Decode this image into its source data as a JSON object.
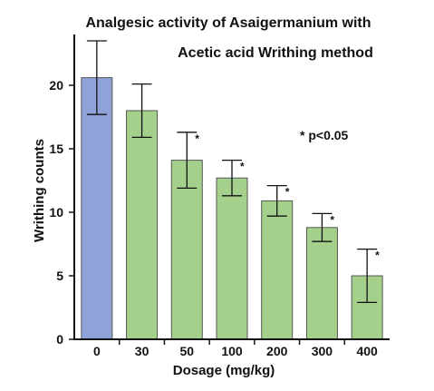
{
  "chart_data": {
    "type": "bar",
    "title_line1": "Analgesic activity of Asaigermanium with",
    "title_line2": "Acetic acid Writhing method",
    "xlabel": "Dosage (mg/kg)",
    "ylabel": "Writhing counts",
    "categories": [
      "0",
      "30",
      "50",
      "100",
      "200",
      "300",
      "400"
    ],
    "values": [
      20.6,
      18.0,
      14.1,
      12.7,
      10.9,
      8.8,
      5.0
    ],
    "errors": [
      2.9,
      2.1,
      2.2,
      1.4,
      1.2,
      1.1,
      2.1
    ],
    "significant": [
      false,
      false,
      true,
      true,
      true,
      true,
      true
    ],
    "significance_mark": "*",
    "significance_note": "* p<0.05",
    "ylim": [
      0,
      24
    ],
    "yticks": [
      "0",
      "5",
      "10",
      "15",
      "20"
    ],
    "colors": {
      "control": "#8fa3da",
      "treated": "#a5d08c"
    }
  }
}
